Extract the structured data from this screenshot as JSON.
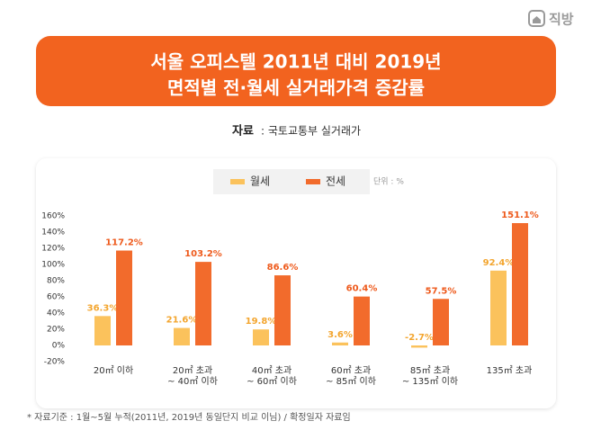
{
  "logo": "직방",
  "chart_data": {
    "type": "bar",
    "title_lines": [
      "서울 오피스텔 2011년 대비 2019년",
      "면적별 전·월세 실거래가격 증감률"
    ],
    "source_label": "자료",
    "source_text": ": 국토교통부 실거래가",
    "unit_note": "단위 : %",
    "footnote": "* 자료기준 : 1월~5월 누적(2011년, 2019년 동일단지 비교 이님) / 확정일자 자료임",
    "categories": [
      "20㎡ 이하",
      "20㎡ 초과\n~ 40㎡ 이하",
      "40㎡ 초과\n~ 60㎡ 이하",
      "60㎡ 초과\n~ 85㎡ 이하",
      "85㎡ 초과\n~ 135㎡ 이하",
      "135㎡ 초과"
    ],
    "series": [
      {
        "name": "월세",
        "color": "#fbc25c",
        "label_color": "#f3a52e",
        "values": [
          36.3,
          21.6,
          19.8,
          3.6,
          -2.7,
          92.4
        ],
        "value_labels": [
          "36.3%",
          "21.6%",
          "19.8%",
          "3.6%",
          "-2.7%",
          "92.4%"
        ]
      },
      {
        "name": "전세",
        "color": "#f26b2c",
        "label_color": "#ee5a1c",
        "values": [
          117.2,
          103.2,
          86.6,
          60.4,
          57.5,
          151.1
        ],
        "value_labels": [
          "117.2%",
          "103.2%",
          "86.6%",
          "60.4%",
          "57.5%",
          "151.1%"
        ]
      }
    ],
    "ylim": [
      -20,
      160
    ],
    "yticks": [
      {
        "value": -20,
        "label": "-20%"
      },
      {
        "value": 0,
        "label": "0%"
      },
      {
        "value": 20,
        "label": "20%"
      },
      {
        "value": 40,
        "label": "40%"
      },
      {
        "value": 60,
        "label": "60%"
      },
      {
        "value": 80,
        "label": "80%"
      },
      {
        "value": 100,
        "label": "100%"
      },
      {
        "value": 120,
        "label": "120%"
      },
      {
        "value": 140,
        "label": "140%"
      },
      {
        "value": 160,
        "label": "160%"
      }
    ],
    "grid": false
  }
}
